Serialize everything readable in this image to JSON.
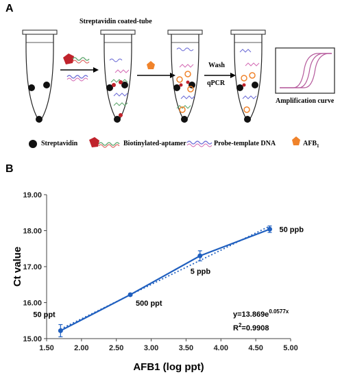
{
  "panel_a": {
    "letter": "A",
    "tube_title": "Streptavidin coated-tube",
    "wash_label": "Wash",
    "qpcr_label": "qPCR",
    "amp_caption": "Amplification curve",
    "legend": {
      "streptavidin": "Streptavidin",
      "aptamer": "Biotinylated-aptamer",
      "probe": "Probe-template DNA",
      "afb": "AFB",
      "afb_sub": "1"
    },
    "colors": {
      "tube_outline": "#222222",
      "streptavidin": "#111111",
      "aptamer_biotin": "#c0232c",
      "afb": "#f0832b",
      "strand_green": "#5aa469",
      "strand_red": "#d9534f",
      "strand_blue": "#6b6bd6",
      "strand_pink": "#d46ab4",
      "amp_curves": "#b55a9c"
    }
  },
  "panel_b": {
    "letter": "B",
    "equation": "y=13.869e",
    "equation_exp": "0.0577x",
    "r2_label": "R",
    "r2_sup": "2",
    "r2_value": "=0.9908",
    "annotations": [
      "50 ppt",
      "500 ppt",
      "5 ppb",
      "50 ppb"
    ],
    "line_color": "#1f5fbf"
  },
  "chart_data": {
    "type": "line",
    "xlabel": "AFB1 (log ppt)",
    "ylabel": "Ct value",
    "xlim": [
      1.5,
      5.0
    ],
    "ylim": [
      15.0,
      19.0
    ],
    "xticks": [
      "1.50",
      "2.00",
      "2.50",
      "3.00",
      "3.50",
      "4.00",
      "4.50",
      "5.00"
    ],
    "yticks": [
      "15.00",
      "16.00",
      "17.00",
      "18.00",
      "19.00"
    ],
    "series": [
      {
        "x": [
          1.7,
          2.7,
          3.7,
          4.7
        ],
        "y": [
          15.22,
          16.22,
          17.3,
          18.04
        ],
        "err": [
          0.17,
          0.03,
          0.14,
          0.09
        ]
      }
    ],
    "trendline": {
      "type": "exponential",
      "a": 13.869,
      "b": 0.0577,
      "style": "dotted"
    },
    "grid": false
  }
}
